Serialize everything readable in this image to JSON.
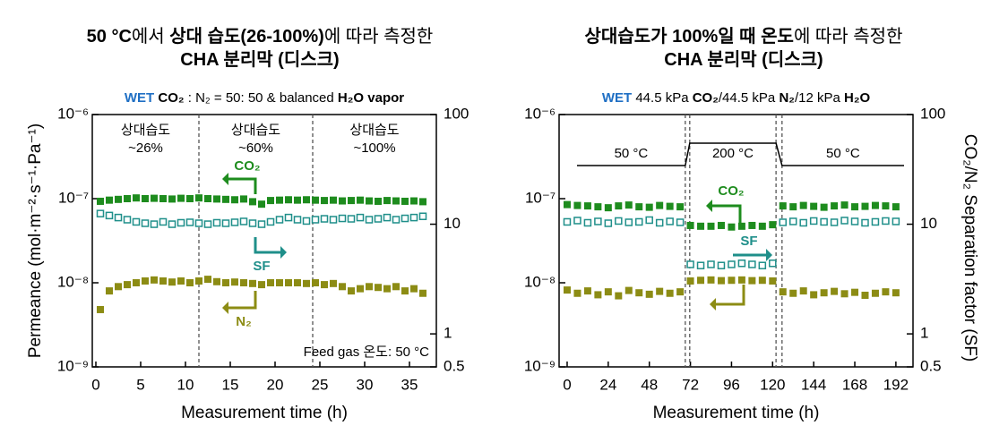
{
  "chart_data": [
    {
      "type": "scatter",
      "title_lines": [
        [
          {
            "text": "50 °C",
            "style": "bold"
          },
          {
            "text": "에서 ",
            "style": "plain"
          },
          {
            "text": "상대 습도(26-100%)",
            "style": "bold"
          },
          {
            "text": "에 따라 측정한",
            "style": "plain"
          }
        ],
        [
          {
            "text": "CHA 분리막 (디스크)",
            "style": "bold"
          }
        ]
      ],
      "subtitle": [
        {
          "text": "WET",
          "style": "wet"
        },
        {
          "text": " CO₂",
          "style": "bold"
        },
        {
          "text": " : N₂ = 50: 50 & balanced ",
          "style": "plain"
        },
        {
          "text": "H₂O vapor",
          "style": "bold"
        }
      ],
      "x_label": "Measurement time (h)",
      "y_label": "Permeance (mol·m⁻²·s⁻¹·Pa⁻¹)",
      "xlim": [
        -0.4,
        38
      ],
      "xticks": [
        0,
        5,
        10,
        15,
        20,
        25,
        30,
        35
      ],
      "ylim": [
        1e-09,
        1e-06
      ],
      "y_log": true,
      "yticks": [
        {
          "value": 1e-09,
          "label": "10⁻⁹"
        },
        {
          "value": 1e-08,
          "label": "10⁻⁸"
        },
        {
          "value": 1e-07,
          "label": "10⁻⁷"
        },
        {
          "value": 1e-06,
          "label": "10⁻⁶"
        }
      ],
      "y2lim": [
        0.5,
        100
      ],
      "y2_log": true,
      "y2ticks": [
        0.5,
        1,
        10,
        100
      ],
      "phase_boundaries": [
        11.5,
        24.2
      ],
      "region_labels": [
        [
          "상대습도",
          "~26%"
        ],
        [
          "상대습도",
          "~60%"
        ],
        [
          "상대습도",
          "~100%"
        ]
      ],
      "note": "Feed gas 온도: 50 °C",
      "x": [
        0.5,
        1.5,
        2.5,
        3.5,
        4.5,
        5.5,
        6.5,
        7.5,
        8.5,
        9.5,
        10.5,
        11.5,
        12.5,
        13.5,
        14.5,
        15.5,
        16.5,
        17.5,
        18.5,
        19.5,
        20.5,
        21.5,
        22.5,
        23.5,
        24.5,
        25.5,
        26.5,
        27.5,
        28.5,
        29.5,
        30.5,
        31.5,
        32.5,
        33.5,
        34.5,
        35.5,
        36.5
      ],
      "series": [
        {
          "name": "CO₂",
          "color": "#1e8c1e",
          "marker": "filled",
          "values": [
            9.3e-08,
            9.6e-08,
            9.8e-08,
            1e-07,
            1.02e-07,
            1e-07,
            1.01e-07,
            1e-07,
            9.9e-08,
            1.01e-07,
            1e-07,
            1.02e-07,
            1e-07,
            9.9e-08,
            9.8e-08,
            9.7e-08,
            9.9e-08,
            9.2e-08,
            8.6e-08,
            9.5e-08,
            9.6e-08,
            9.7e-08,
            9.6e-08,
            9.7e-08,
            9.6e-08,
            9.5e-08,
            9.6e-08,
            9.4e-08,
            9.5e-08,
            9.6e-08,
            9.4e-08,
            9.3e-08,
            9.5e-08,
            9.4e-08,
            9.3e-08,
            9.4e-08,
            9.2e-08
          ]
        },
        {
          "name": "SF",
          "color": "#1f8f8a",
          "marker": "open",
          "axis": "y2",
          "values": [
            12.5,
            12,
            11.5,
            11,
            10.5,
            10.2,
            10,
            10.5,
            10,
            10.3,
            10.4,
            10.2,
            10,
            10.3,
            10.2,
            10.4,
            10.6,
            10.2,
            10,
            10.5,
            11,
            11.5,
            11,
            10.7,
            11,
            11.2,
            11,
            11.3,
            11.2,
            11.5,
            11,
            11.2,
            11.5,
            11,
            11.3,
            11.5,
            11.8
          ]
        },
        {
          "name": "N₂",
          "color": "#8c8c14",
          "marker": "filled",
          "values": [
            4.8e-09,
            8e-09,
            9e-09,
            9.5e-09,
            1e-08,
            1.05e-08,
            1.08e-08,
            1.05e-08,
            1.02e-08,
            1.05e-08,
            1e-08,
            1.05e-08,
            1.1e-08,
            1.03e-08,
            1e-08,
            1.02e-08,
            1e-08,
            9.8e-09,
            9.5e-09,
            1e-08,
            1e-08,
            1e-08,
            1e-08,
            9.8e-09,
            1e-08,
            9.5e-09,
            9.8e-09,
            9e-09,
            8e-09,
            8.5e-09,
            9e-09,
            8.8e-09,
            8.5e-09,
            9e-09,
            8e-09,
            8.5e-09,
            7.5e-09
          ]
        }
      ]
    },
    {
      "type": "scatter",
      "title_lines": [
        [
          {
            "text": "상대습도가 100%일 때 온도",
            "style": "bold"
          },
          {
            "text": "에 따라 측정한",
            "style": "plain"
          }
        ],
        [
          {
            "text": "CHA 분리막 (디스크)",
            "style": "bold"
          }
        ]
      ],
      "subtitle": [
        {
          "text": "WET",
          "style": "wet"
        },
        {
          "text": " 44.5 kPa ",
          "style": "plain"
        },
        {
          "text": "CO₂",
          "style": "bold"
        },
        {
          "text": "/44.5 kPa ",
          "style": "plain"
        },
        {
          "text": "N₂",
          "style": "bold"
        },
        {
          "text": "/12 kPa ",
          "style": "plain"
        },
        {
          "text": "H₂O",
          "style": "bold"
        }
      ],
      "x_label": "Measurement time (h)",
      "y2_label": "CO₂/N₂ Separation factor (SF)",
      "xlim": [
        -4.7,
        202
      ],
      "xticks": [
        0,
        24,
        48,
        72,
        96,
        120,
        144,
        168,
        192
      ],
      "ylim": [
        1e-09,
        1e-06
      ],
      "y_log": true,
      "yticks": [
        {
          "value": 1e-09,
          "label": "10⁻⁹"
        },
        {
          "value": 1e-08,
          "label": "10⁻⁸"
        },
        {
          "value": 1e-07,
          "label": "10⁻⁷"
        },
        {
          "value": 1e-06,
          "label": "10⁻⁶"
        }
      ],
      "y2lim": [
        0.5,
        100
      ],
      "y2_log": true,
      "y2ticks": [
        0.5,
        1,
        10,
        100
      ],
      "phase_boundaries": [
        69,
        71.6,
        122,
        125.5
      ],
      "temperature_phases": [
        {
          "value": 50,
          "label": "50 °C"
        },
        {
          "value": 200,
          "label": "200 °C"
        },
        {
          "value": 50,
          "label": "50 °C"
        }
      ],
      "x": [
        0,
        6,
        12,
        18,
        24,
        30,
        36,
        42,
        48,
        54,
        60,
        66,
        72,
        78,
        84,
        90,
        96,
        102,
        108,
        114,
        120,
        126,
        132,
        138,
        144,
        150,
        156,
        162,
        168,
        174,
        180,
        186,
        192
      ],
      "series": [
        {
          "name": "CO₂",
          "color": "#1e8c1e",
          "marker": "filled",
          "values": [
            8.5e-08,
            8.3e-08,
            8.2e-08,
            8e-08,
            7.8e-08,
            8.2e-08,
            8.4e-08,
            8e-08,
            7.9e-08,
            8.3e-08,
            8.1e-08,
            8e-08,
            4.8e-08,
            4.7e-08,
            4.7e-08,
            4.8e-08,
            4.6e-08,
            4.7e-08,
            4.8e-08,
            4.7e-08,
            4.9e-08,
            8.2e-08,
            8e-08,
            8.3e-08,
            8.1e-08,
            7.9e-08,
            8.2e-08,
            8.4e-08,
            8e-08,
            8.1e-08,
            8.3e-08,
            8.2e-08,
            8e-08
          ]
        },
        {
          "name": "SF",
          "color": "#1f8f8a",
          "marker": "open",
          "axis": "y2",
          "values": [
            10.5,
            10.8,
            10.3,
            10.6,
            10.2,
            10.7,
            10.4,
            10.5,
            10.9,
            10.3,
            10.6,
            10.4,
            4.3,
            4.2,
            4.3,
            4.2,
            4.3,
            4.4,
            4.3,
            4.2,
            4.4,
            10.4,
            10.6,
            10.3,
            10.7,
            10.5,
            10.4,
            10.8,
            10.6,
            10.3,
            10.5,
            10.7,
            10.6
          ]
        },
        {
          "color": "#8c8c14",
          "marker": "filled",
          "values": [
            8.2e-09,
            7.5e-09,
            8e-09,
            7.2e-09,
            7.8e-09,
            7e-09,
            8.1e-09,
            7.6e-09,
            7.3e-09,
            7.9e-09,
            7.5e-09,
            7.8e-09,
            1.05e-08,
            1.07e-08,
            1.08e-08,
            1.06e-08,
            1.07e-08,
            1.08e-08,
            1.06e-08,
            1.07e-08,
            1.05e-08,
            7.8e-09,
            7.5e-09,
            8e-09,
            7.2e-09,
            7.6e-09,
            7.9e-09,
            7.4e-09,
            7.7e-09,
            7.1e-09,
            7.5e-09,
            7.8e-09,
            7.6e-09
          ]
        }
      ]
    }
  ]
}
